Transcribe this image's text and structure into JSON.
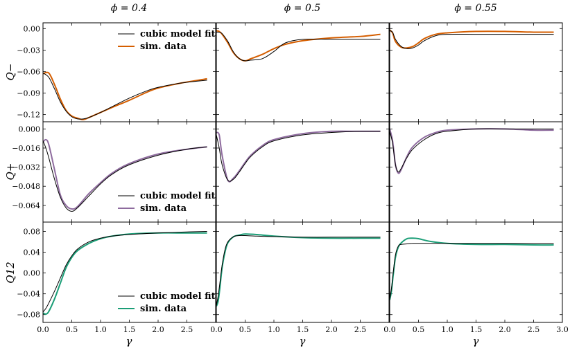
{
  "figure": {
    "col_titles": [
      "ϕ = 0.4",
      "ϕ = 0.5",
      "ϕ = 0.55"
    ],
    "row_labels": [
      "Q−",
      "Q+",
      "Q12"
    ],
    "xlabel": "γ",
    "legend_fit": "cubic model fit",
    "legend_sim": "sim. data"
  },
  "chart_data": {
    "type": "line",
    "layout": "3x3 grid, shared x per column, shared y per row",
    "xlim": [
      0,
      3.0
    ],
    "xticks": [
      0.0,
      0.5,
      1.0,
      1.5,
      2.0,
      2.5,
      3.0
    ],
    "xtick_labels_by_column": [
      [
        "0.0",
        "0.5",
        "1.0",
        "1.5",
        "2.0",
        "2.5"
      ],
      [
        "0.0",
        "0.5",
        "1.0",
        "1.5",
        "2.0",
        "2.5"
      ],
      [
        "0.0",
        "0.5",
        "1.0",
        "1.5",
        "2.0",
        "2.5",
        "3.0"
      ]
    ],
    "series_colors": {
      "cubic model fit": "#000000",
      "Q-": "#d55e00",
      "Q+": "#8e6b9e",
      "Q12": "#1b9e77"
    },
    "rows": [
      {
        "ylabel": "Q−",
        "ylim": [
          -0.13,
          0.008
        ],
        "yticks": [
          0.0,
          -0.03,
          -0.06,
          -0.09,
          -0.12
        ],
        "ytick_labels": [
          "0.00",
          "−0.03",
          "−0.06",
          "−0.09",
          "−0.12"
        ],
        "legend": true,
        "sim_color": "#d55e00",
        "panels": [
          {
            "phi": "0.4",
            "x": [
              0,
              0.1,
              0.2,
              0.3,
              0.4,
              0.5,
              0.6,
              0.7,
              0.8,
              1.0,
              1.2,
              1.5,
              1.8,
              2.0,
              2.4,
              2.85
            ],
            "fit": [
              -0.062,
              -0.068,
              -0.084,
              -0.102,
              -0.115,
              -0.123,
              -0.126,
              -0.126,
              -0.124,
              -0.117,
              -0.109,
              -0.097,
              -0.087,
              -0.082,
              -0.076,
              -0.072
            ],
            "sim": [
              -0.063,
              -0.062,
              -0.078,
              -0.098,
              -0.114,
              -0.122,
              -0.125,
              -0.127,
              -0.124,
              -0.117,
              -0.11,
              -0.1,
              -0.089,
              -0.083,
              -0.076,
              -0.07
            ]
          },
          {
            "phi": "0.5",
            "x": [
              0,
              0.05,
              0.1,
              0.2,
              0.3,
              0.4,
              0.5,
              0.6,
              0.8,
              1.0,
              1.2,
              1.5,
              2.0,
              2.5,
              2.85
            ],
            "fit": [
              -0.005,
              -0.005,
              -0.007,
              -0.018,
              -0.033,
              -0.042,
              -0.045,
              -0.044,
              -0.042,
              -0.032,
              -0.02,
              -0.015,
              -0.015,
              -0.015,
              -0.015
            ],
            "sim": [
              -0.003,
              -0.004,
              -0.008,
              -0.02,
              -0.034,
              -0.042,
              -0.045,
              -0.042,
              -0.036,
              -0.028,
              -0.022,
              -0.017,
              -0.013,
              -0.011,
              -0.008
            ]
          },
          {
            "phi": "0.55",
            "x": [
              0,
              0.05,
              0.1,
              0.2,
              0.3,
              0.4,
              0.5,
              0.6,
              0.8,
              1.0,
              1.5,
              2.0,
              2.5,
              2.85
            ],
            "fit": [
              -0.003,
              -0.005,
              -0.015,
              -0.025,
              -0.028,
              -0.027,
              -0.023,
              -0.017,
              -0.01,
              -0.008,
              -0.008,
              -0.008,
              -0.008,
              -0.008
            ],
            "sim": [
              -0.002,
              -0.006,
              -0.018,
              -0.026,
              -0.027,
              -0.025,
              -0.02,
              -0.014,
              -0.008,
              -0.006,
              -0.004,
              -0.004,
              -0.005,
              -0.005
            ]
          }
        ]
      },
      {
        "ylabel": "Q+",
        "ylim": [
          -0.078,
          0.006
        ],
        "yticks": [
          0.0,
          -0.016,
          -0.032,
          -0.048,
          -0.064
        ],
        "ytick_labels": [
          "0.000",
          "−0.016",
          "−0.032",
          "−0.048",
          "−0.064"
        ],
        "legend": true,
        "sim_color": "#8e6b9e",
        "panels": [
          {
            "phi": "0.4",
            "x": [
              0,
              0.05,
              0.1,
              0.2,
              0.3,
              0.4,
              0.5,
              0.6,
              0.8,
              1.0,
              1.2,
              1.5,
              2.0,
              2.5,
              2.85
            ],
            "fit": [
              -0.01,
              -0.016,
              -0.024,
              -0.042,
              -0.057,
              -0.066,
              -0.069,
              -0.066,
              -0.056,
              -0.046,
              -0.038,
              -0.03,
              -0.022,
              -0.017,
              -0.015
            ],
            "sim": [
              -0.011,
              -0.009,
              -0.013,
              -0.034,
              -0.055,
              -0.064,
              -0.067,
              -0.065,
              -0.054,
              -0.045,
              -0.037,
              -0.029,
              -0.021,
              -0.017,
              -0.015
            ]
          },
          {
            "phi": "0.5",
            "x": [
              0,
              0.05,
              0.1,
              0.2,
              0.3,
              0.4,
              0.5,
              0.6,
              0.8,
              1.0,
              1.5,
              2.0,
              2.5,
              2.85
            ],
            "fit": [
              -0.005,
              -0.016,
              -0.03,
              -0.043,
              -0.042,
              -0.036,
              -0.029,
              -0.023,
              -0.015,
              -0.01,
              -0.005,
              -0.003,
              -0.002,
              -0.002
            ],
            "sim": [
              -0.003,
              -0.005,
              -0.022,
              -0.043,
              -0.041,
              -0.035,
              -0.028,
              -0.022,
              -0.014,
              -0.009,
              -0.004,
              -0.002,
              -0.002,
              -0.002
            ]
          },
          {
            "phi": "0.55",
            "x": [
              0,
              0.05,
              0.1,
              0.15,
              0.2,
              0.3,
              0.4,
              0.6,
              0.8,
              1.0,
              1.5,
              2.0,
              2.5,
              2.85
            ],
            "fit": [
              -0.002,
              -0.012,
              -0.03,
              -0.036,
              -0.033,
              -0.024,
              -0.017,
              -0.009,
              -0.004,
              -0.002,
              0.0,
              0.0,
              0.0,
              0.0
            ],
            "sim": [
              0.0,
              -0.01,
              -0.03,
              -0.037,
              -0.034,
              -0.023,
              -0.015,
              -0.007,
              -0.003,
              -0.001,
              0.0,
              0.0,
              -0.001,
              -0.001
            ]
          }
        ]
      },
      {
        "ylabel": "Q12",
        "ylim": [
          -0.095,
          0.098
        ],
        "yticks": [
          0.08,
          0.04,
          0.0,
          -0.04,
          -0.08
        ],
        "ytick_labels": [
          "0.08",
          "0.04",
          "0.00",
          "−0.04",
          "−0.08"
        ],
        "legend": true,
        "sim_color": "#1b9e77",
        "panels": [
          {
            "phi": "0.4",
            "x": [
              0,
              0.05,
              0.1,
              0.2,
              0.3,
              0.4,
              0.5,
              0.6,
              0.8,
              1.0,
              1.2,
              1.5,
              2.0,
              2.5,
              2.85
            ],
            "fit": [
              -0.075,
              -0.068,
              -0.058,
              -0.035,
              -0.01,
              0.015,
              0.033,
              0.046,
              0.06,
              0.067,
              0.071,
              0.074,
              0.077,
              0.079,
              0.08
            ],
            "sim": [
              -0.077,
              -0.079,
              -0.074,
              -0.05,
              -0.02,
              0.01,
              0.03,
              0.043,
              0.057,
              0.066,
              0.071,
              0.075,
              0.077,
              0.077,
              0.077
            ]
          },
          {
            "phi": "0.5",
            "x": [
              0,
              0.03,
              0.06,
              0.1,
              0.15,
              0.2,
              0.3,
              0.4,
              0.5,
              0.7,
              1.0,
              1.5,
              2.0,
              2.5,
              2.85
            ],
            "fit": [
              -0.063,
              -0.045,
              -0.02,
              0.015,
              0.045,
              0.06,
              0.07,
              0.072,
              0.072,
              0.071,
              0.07,
              0.069,
              0.069,
              0.069,
              0.069
            ],
            "sim": [
              -0.064,
              -0.055,
              -0.03,
              0.01,
              0.04,
              0.058,
              0.07,
              0.073,
              0.075,
              0.074,
              0.071,
              0.068,
              0.067,
              0.067,
              0.067
            ]
          },
          {
            "phi": "0.55",
            "x": [
              0,
              0.03,
              0.06,
              0.1,
              0.15,
              0.2,
              0.3,
              0.4,
              0.5,
              0.7,
              1.0,
              1.5,
              2.0,
              2.5,
              2.85
            ],
            "fit": [
              -0.05,
              -0.03,
              0.0,
              0.035,
              0.052,
              0.055,
              0.056,
              0.057,
              0.057,
              0.057,
              0.057,
              0.057,
              0.057,
              0.057,
              0.057
            ],
            "sim": [
              -0.052,
              -0.035,
              -0.005,
              0.03,
              0.05,
              0.058,
              0.066,
              0.067,
              0.066,
              0.061,
              0.057,
              0.055,
              0.055,
              0.054,
              0.054
            ]
          }
        ]
      }
    ]
  }
}
